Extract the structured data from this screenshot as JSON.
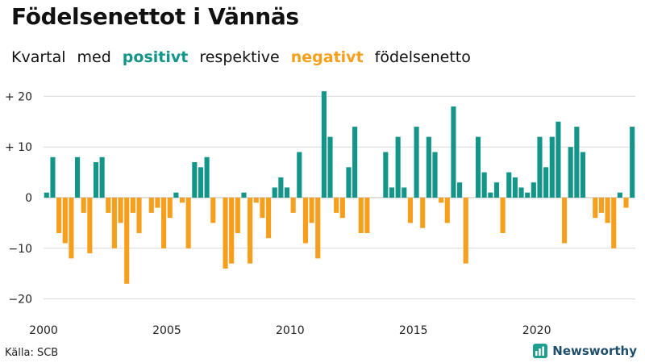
{
  "title": "Födelsenettot i Vännäs",
  "subtitle": {
    "part1": "Kvartal",
    "part2": "med",
    "positive": "positivt",
    "part3": "respektive",
    "negative": "negativt",
    "part4": "födelsenetto"
  },
  "source": "Källa: SCB",
  "brand": "Newsworthy",
  "colors": {
    "positive": "#14958a",
    "negative": "#f59f1c",
    "brand": "#1f4e6b"
  },
  "chart_data": {
    "type": "bar",
    "title": "Födelsenettot i Vännäs",
    "xlabel": "",
    "ylabel": "",
    "ylim": [
      -22,
      22
    ],
    "yticks": [
      20,
      10,
      0,
      -10,
      -20
    ],
    "ytick_labels": [
      "+ 20",
      "+ 10",
      "0",
      "−10",
      "−20"
    ],
    "xticks": [
      2000,
      2005,
      2010,
      2015,
      2020
    ],
    "xtick_labels": [
      "2000",
      "2005",
      "2010",
      "2015",
      "2020"
    ],
    "grid": true,
    "categories": [
      "2000K1",
      "2000K2",
      "2000K3",
      "2000K4",
      "2001K1",
      "2001K2",
      "2001K3",
      "2001K4",
      "2002K1",
      "2002K2",
      "2002K3",
      "2002K4",
      "2003K1",
      "2003K2",
      "2003K3",
      "2003K4",
      "2004K1",
      "2004K2",
      "2004K3",
      "2004K4",
      "2005K1",
      "2005K2",
      "2005K3",
      "2005K4",
      "2006K1",
      "2006K2",
      "2006K3",
      "2006K4",
      "2007K1",
      "2007K2",
      "2007K3",
      "2007K4",
      "2008K1",
      "2008K2",
      "2008K3",
      "2008K4",
      "2009K1",
      "2009K2",
      "2009K3",
      "2009K4",
      "2010K1",
      "2010K2",
      "2010K3",
      "2010K4",
      "2011K1",
      "2011K2",
      "2011K3",
      "2011K4",
      "2012K1",
      "2012K2",
      "2012K3",
      "2012K4",
      "2013K1",
      "2013K2",
      "2013K3",
      "2013K4",
      "2014K1",
      "2014K2",
      "2014K3",
      "2014K4",
      "2015K1",
      "2015K2",
      "2015K3",
      "2015K4",
      "2016K1",
      "2016K2",
      "2016K3",
      "2016K4",
      "2017K1",
      "2017K2",
      "2017K3",
      "2017K4",
      "2018K1",
      "2018K2",
      "2018K3",
      "2018K4",
      "2019K1",
      "2019K2",
      "2019K3",
      "2019K4",
      "2020K1",
      "2020K2",
      "2020K3",
      "2020K4",
      "2021K1",
      "2021K2",
      "2021K3",
      "2021K4",
      "2022K1",
      "2022K2",
      "2022K3",
      "2022K4",
      "2023K1",
      "2023K2",
      "2023K3",
      "2023K4"
    ],
    "values": [
      1,
      8,
      -7,
      -9,
      -12,
      8,
      -3,
      -11,
      7,
      8,
      -3,
      -10,
      -5,
      -17,
      -3,
      -7,
      0,
      -3,
      -2,
      -10,
      -4,
      1,
      -1,
      -10,
      7,
      6,
      8,
      -5,
      0,
      -14,
      -13,
      -7,
      1,
      -13,
      -1,
      -4,
      -8,
      2,
      4,
      2,
      -3,
      9,
      -9,
      -5,
      -12,
      21,
      12,
      -3,
      -4,
      6,
      14,
      -7,
      -7,
      0,
      0,
      9,
      2,
      12,
      2,
      -5,
      14,
      -6,
      12,
      9,
      -1,
      -5,
      18,
      3,
      -13,
      0,
      12,
      5,
      1,
      3,
      -7,
      5,
      4,
      2,
      1,
      3,
      12,
      6,
      12,
      15,
      -9,
      10,
      14,
      9,
      0,
      -4,
      -3,
      -5,
      -10,
      1,
      -2,
      14
    ]
  }
}
